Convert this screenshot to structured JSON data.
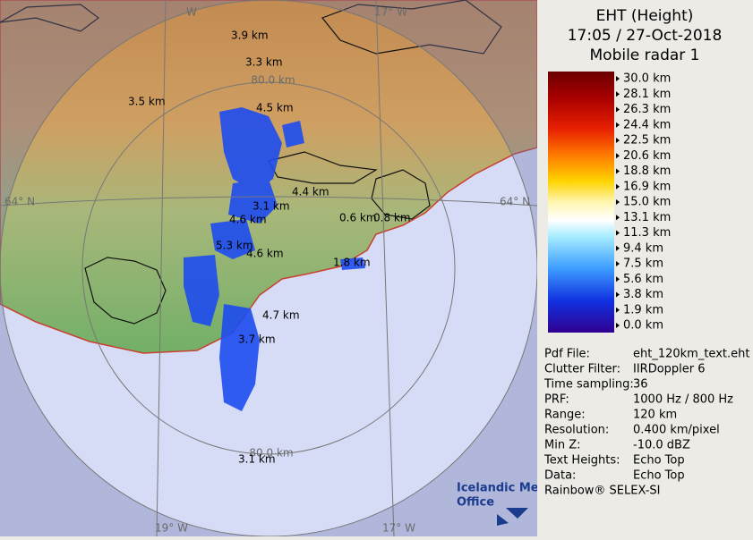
{
  "header": {
    "title": "EHT (Height)",
    "datetime": "17:05 / 27-Oct-2018",
    "radar": "Mobile radar 1"
  },
  "legend": {
    "labels": [
      "30.0 km",
      "28.1 km",
      "26.3 km",
      "24.4 km",
      "22.5 km",
      "20.6 km",
      "18.8 km",
      "16.9 km",
      "15.0 km",
      "13.1 km",
      "11.3 km",
      "9.4 km",
      "7.5 km",
      "5.6 km",
      "3.8 km",
      "1.9 km",
      "0.0 km"
    ]
  },
  "info": {
    "rows": [
      [
        "Pdf File:",
        "eht_120km_text.eht"
      ],
      [
        "Clutter Filter:",
        "IIRDoppler 6"
      ],
      [
        "Time sampling:",
        "36"
      ],
      [
        "PRF:",
        "1000 Hz / 800 Hz"
      ],
      [
        "Range:",
        "120 km"
      ],
      [
        "Resolution:",
        "0.400 km/pixel"
      ],
      [
        "Min Z:",
        "-10.0 dBZ"
      ],
      [
        "Text Heights:",
        "Echo Top"
      ],
      [
        "Data:",
        "Echo Top"
      ]
    ]
  },
  "footer": "Rainbow® SELEX-SI",
  "map": {
    "echo_labels": [
      "3.9 km",
      "3.3 km",
      "3.5 km",
      "4.5 km",
      "4.4 km",
      "3.1 km",
      "0.6 km",
      "0.8 km",
      "4.6 km",
      "5.3 km",
      "4.6 km",
      "1.8 km",
      "4.7 km",
      "3.7 km",
      "3.1 km"
    ],
    "range_labels": [
      "80.0 km",
      "80.0 km"
    ],
    "grid_labels": [
      "64° N",
      "64° N",
      "19° W",
      "17° W",
      "W",
      "17° W"
    ]
  },
  "logo": [
    "Icelandic Met",
    "Office"
  ]
}
